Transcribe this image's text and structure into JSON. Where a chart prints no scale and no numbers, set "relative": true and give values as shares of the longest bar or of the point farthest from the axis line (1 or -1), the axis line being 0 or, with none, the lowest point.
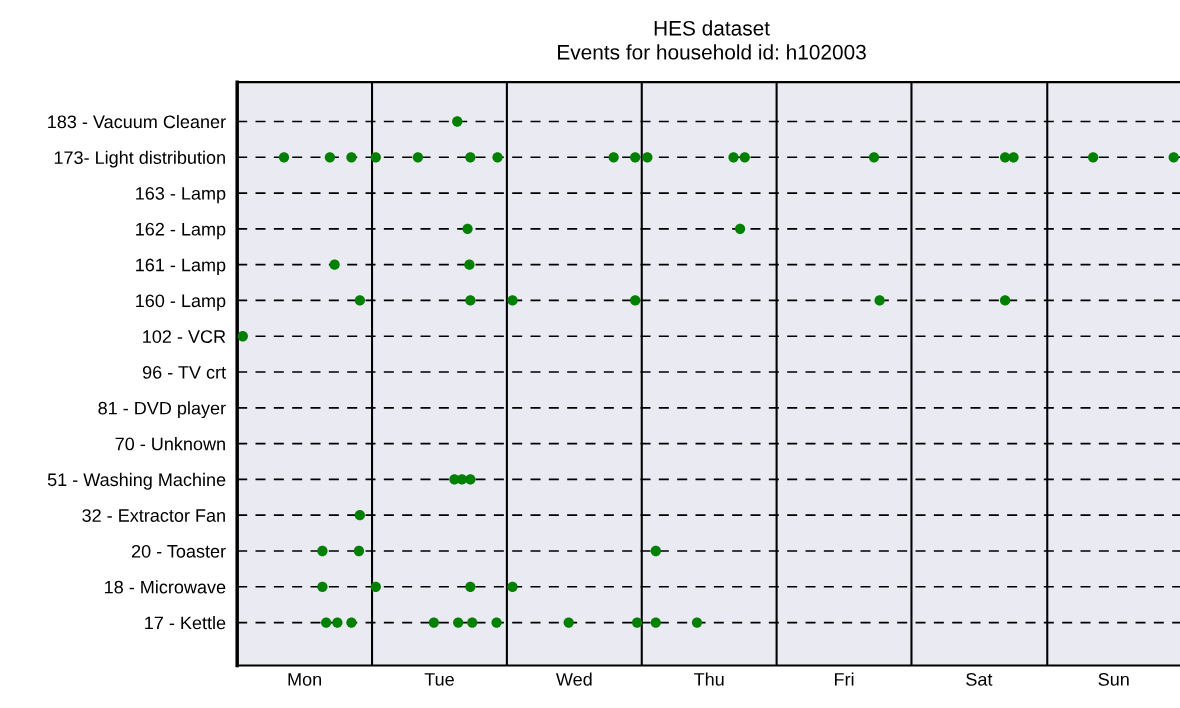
{
  "chart_data": {
    "type": "scatter",
    "orientation": "horizontal",
    "relative": true,
    "title": "HES dataset",
    "subtitle": "Events for household id: h102003",
    "categories": [
      "183 - Vacuum Cleaner",
      "173- Light distribution",
      "163 - Lamp",
      "162 - Lamp",
      "161 - Lamp",
      "160 - Lamp",
      "102 - VCR",
      "96 - TV crt",
      "81 - DVD player",
      "70 - Unknown",
      "51 - Washing Machine",
      "32 - Extractor Fan",
      "20 - Toaster",
      "18 - Microwave",
      "17 - Kettle"
    ],
    "annotations": [
      "Mon",
      "Tue",
      "Wed",
      "Thu",
      "Fri",
      "Sat",
      "Sun"
    ],
    "grid": "y",
    "marker": "circle",
    "ref_lines": [
      {
        "axis": "x",
        "value": 0.144,
        "color": "#000000"
      },
      {
        "axis": "x",
        "value": 0.288,
        "color": "#000000"
      },
      {
        "axis": "x",
        "value": 0.432,
        "color": "#000000"
      },
      {
        "axis": "x",
        "value": 0.576,
        "color": "#000000"
      },
      {
        "axis": "x",
        "value": 0.72,
        "color": "#000000"
      },
      {
        "axis": "x",
        "value": 0.865,
        "color": "#000000"
      }
    ],
    "series": [
      {
        "color": "#008000",
        "values": [
          0.235,
          0.05,
          null,
          0.246,
          0.104,
          0.131,
          0.006,
          null,
          null,
          null,
          0.232,
          0.131,
          0.091,
          0.091,
          0.095
        ]
      },
      {
        "color": "#008000",
        "values": [
          null,
          0.099,
          null,
          0.537,
          0.248,
          0.249,
          null,
          null,
          null,
          null,
          0.24,
          null,
          0.13,
          0.148,
          0.107
        ]
      },
      {
        "color": "#008000",
        "values": [
          null,
          0.122,
          null,
          null,
          null,
          0.294,
          null,
          null,
          null,
          null,
          0.249,
          null,
          0.447,
          0.249,
          0.122
        ]
      },
      {
        "color": "#008000",
        "values": [
          null,
          0.148,
          null,
          null,
          null,
          0.425,
          null,
          null,
          null,
          null,
          null,
          null,
          null,
          0.294,
          0.21
        ]
      },
      {
        "color": "#008000",
        "values": [
          null,
          0.193,
          null,
          null,
          null,
          0.686,
          null,
          null,
          null,
          null,
          null,
          null,
          null,
          null,
          0.236
        ]
      },
      {
        "color": "#008000",
        "values": [
          null,
          0.249,
          null,
          null,
          null,
          0.82,
          null,
          null,
          null,
          null,
          null,
          null,
          null,
          null,
          0.251
        ]
      },
      {
        "color": "#008000",
        "values": [
          null,
          0.278,
          null,
          null,
          null,
          null,
          null,
          null,
          null,
          null,
          null,
          null,
          null,
          null,
          0.277
        ]
      },
      {
        "color": "#008000",
        "values": [
          null,
          0.402,
          null,
          null,
          null,
          null,
          null,
          null,
          null,
          null,
          null,
          null,
          null,
          null,
          0.354
        ]
      },
      {
        "color": "#008000",
        "values": [
          null,
          0.425,
          null,
          null,
          null,
          null,
          null,
          null,
          null,
          null,
          null,
          null,
          null,
          null,
          0.427
        ]
      },
      {
        "color": "#008000",
        "values": [
          null,
          0.438,
          null,
          null,
          null,
          null,
          null,
          null,
          null,
          null,
          null,
          null,
          null,
          null,
          0.447
        ]
      },
      {
        "color": "#008000",
        "values": [
          null,
          0.53,
          null,
          null,
          null,
          null,
          null,
          null,
          null,
          null,
          null,
          null,
          null,
          null,
          0.491
        ]
      },
      {
        "color": "#008000",
        "values": [
          null,
          0.542,
          null,
          null,
          null,
          null,
          null,
          null,
          null,
          null,
          null,
          null,
          null,
          null,
          null
        ]
      },
      {
        "color": "#008000",
        "values": [
          null,
          0.68,
          null,
          null,
          null,
          null,
          null,
          null,
          null,
          null,
          null,
          null,
          null,
          null,
          null
        ]
      },
      {
        "color": "#008000",
        "values": [
          null,
          0.82,
          null,
          null,
          null,
          null,
          null,
          null,
          null,
          null,
          null,
          null,
          null,
          null,
          null
        ]
      },
      {
        "color": "#008000",
        "values": [
          null,
          0.829,
          null,
          null,
          null,
          null,
          null,
          null,
          null,
          null,
          null,
          null,
          null,
          null,
          null
        ]
      },
      {
        "color": "#008000",
        "values": [
          null,
          0.914,
          null,
          null,
          null,
          null,
          null,
          null,
          null,
          null,
          null,
          null,
          null,
          null,
          null
        ]
      },
      {
        "color": "#008000",
        "values": [
          null,
          1,
          null,
          null,
          null,
          null,
          null,
          null,
          null,
          null,
          null,
          null,
          null,
          null,
          null
        ]
      }
    ]
  }
}
